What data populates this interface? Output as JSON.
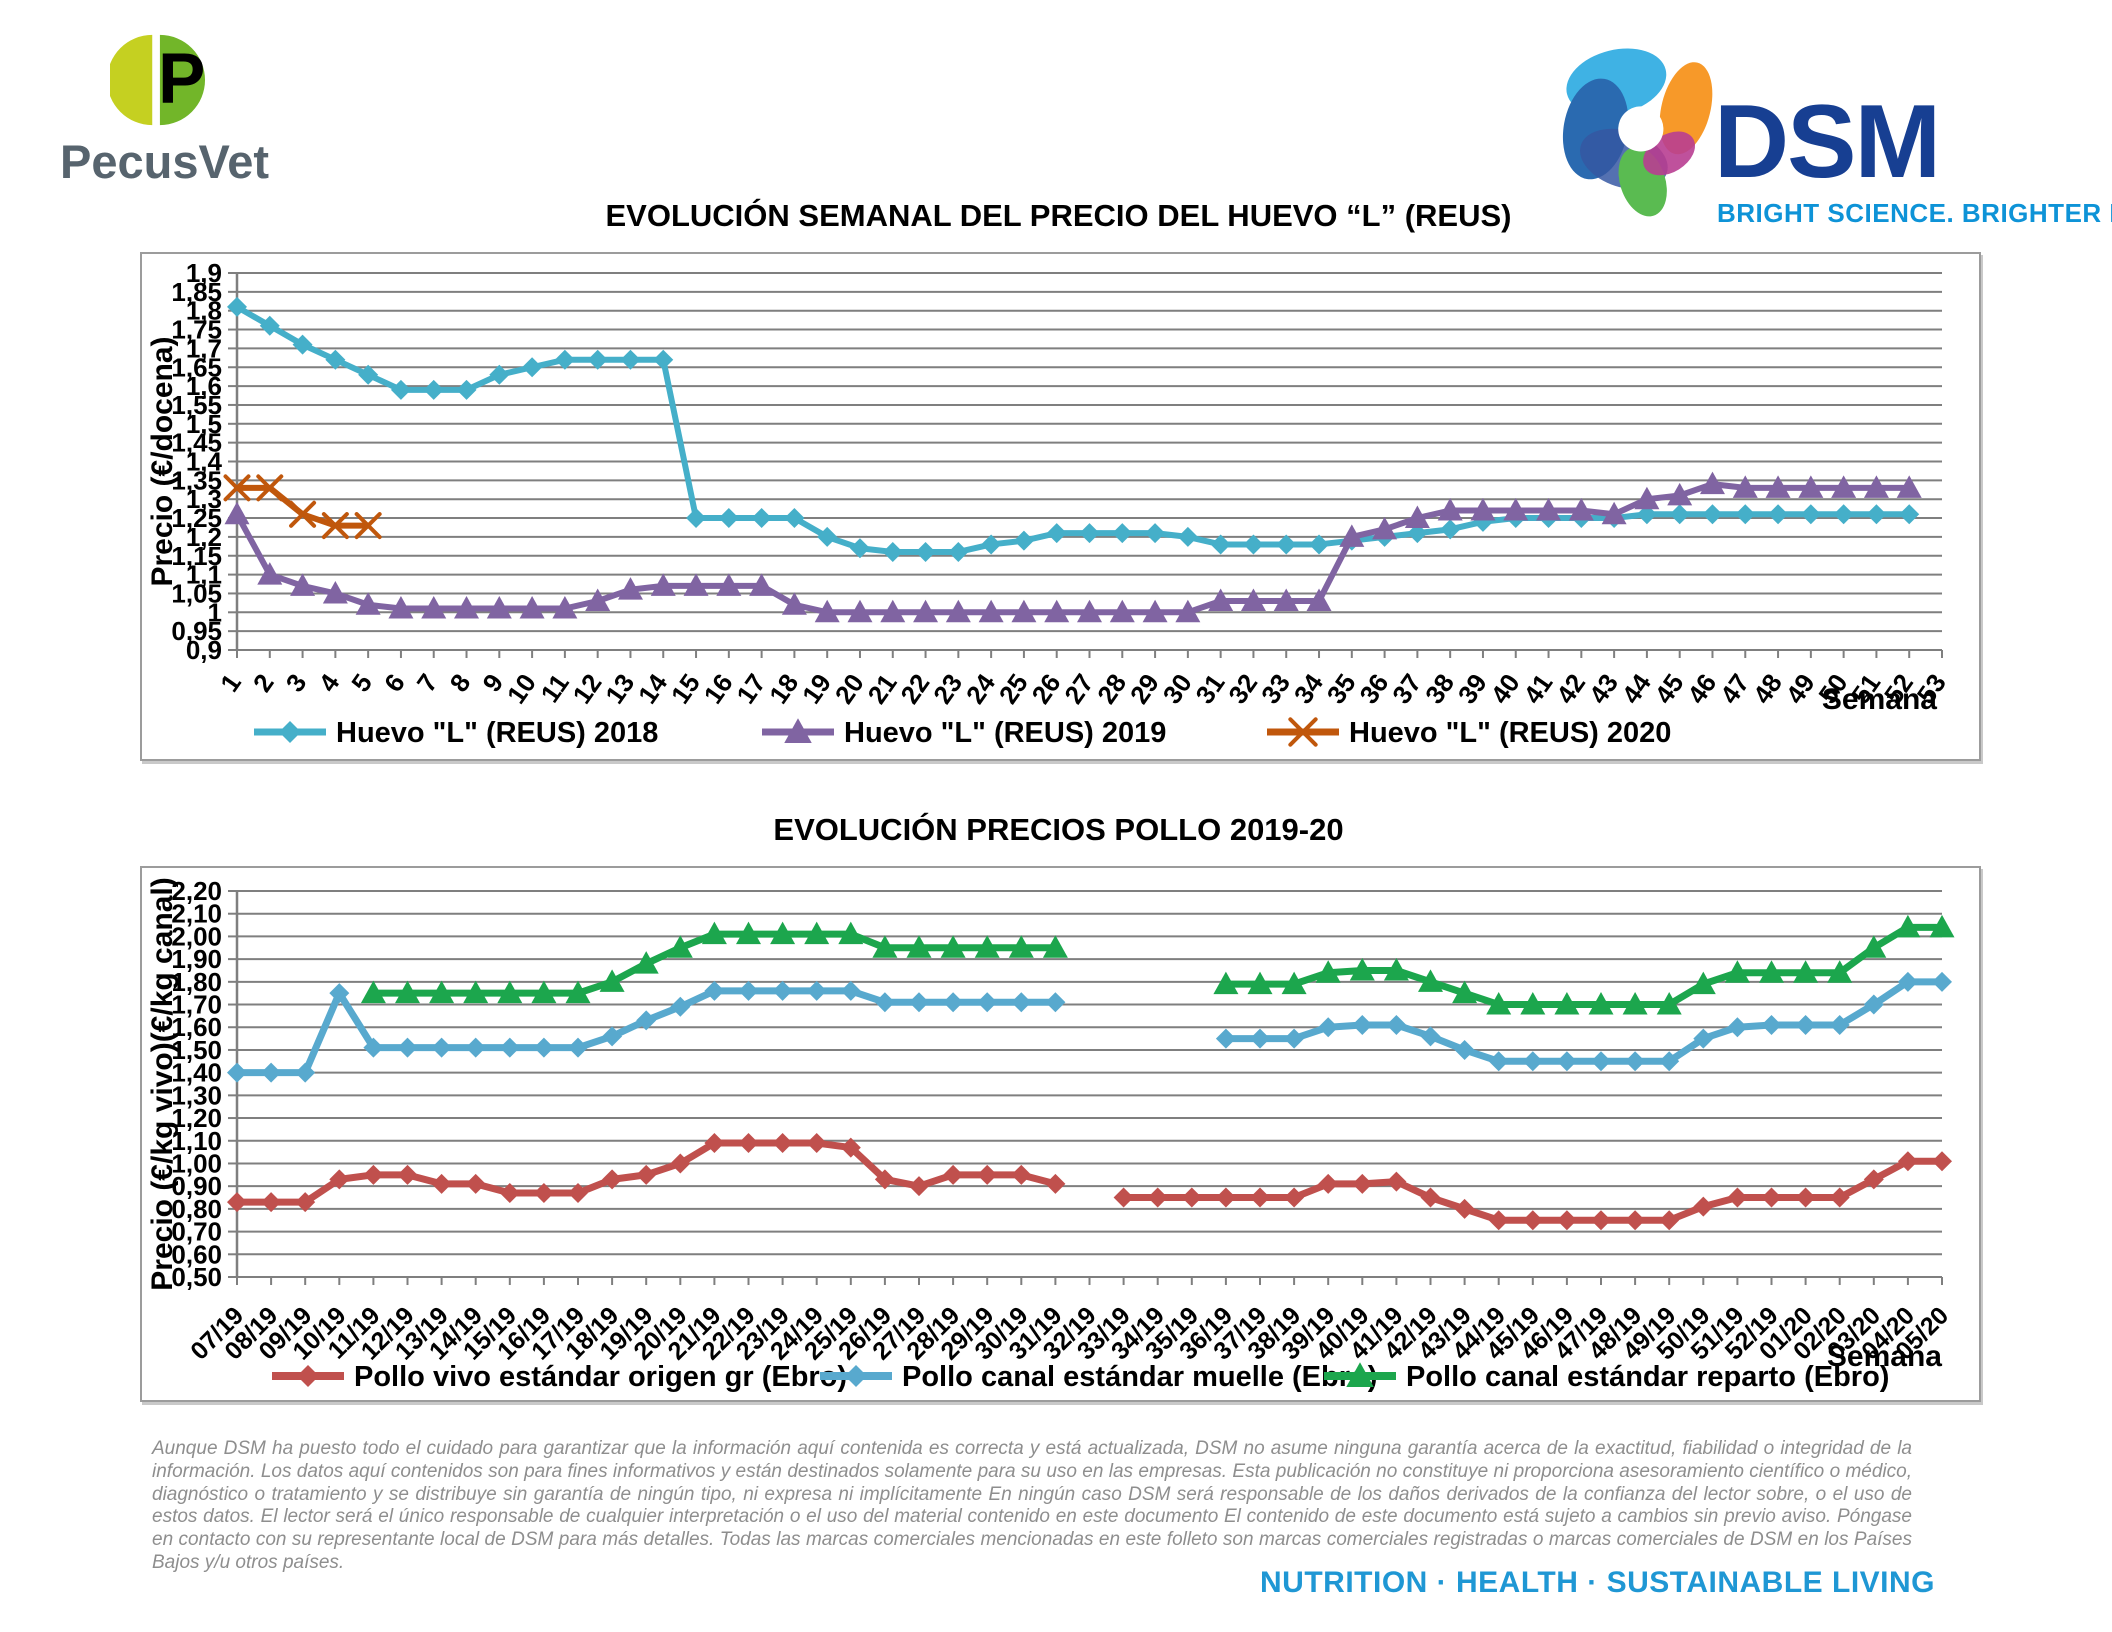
{
  "header": {
    "pecusvet": {
      "name": "PecusVet"
    },
    "dsm": {
      "name": "DSM",
      "tagline": "BRIGHT SCIENCE. BRIGHTER LIVING."
    }
  },
  "footer": {
    "disclaimer": "Aunque DSM ha puesto todo el cuidado para garantizar que la información aquí contenida es correcta y está actualizada, DSM no asume ninguna garantía acerca de la exactitud, fiabilidad o integridad de la información. Los datos aquí contenidos son para fines informativos y están destinados solamente para su uso en las empresas. Esta publicación no constituye ni proporciona asesoramiento científico o médico, diagnóstico o tratamiento y se distribuye sin garantía de ningún tipo, ni expresa ni implícitamente En ningún caso DSM será responsable de los daños derivados de la confianza del lector sobre, o el uso de estos datos. El lector será el único responsable de cualquier interpretación o el uso del material contenido en este documento El contenido de este documento está sujeto a cambios sin previo aviso. Póngase en contacto con su representante local de DSM para más detalles. Todas las marcas comerciales mencionadas en este folleto son marcas comerciales registradas o marcas comerciales de DSM en los Países Bajos y/u otros países.",
    "tagline": "NUTRITION  ·  HEALTH  ·  SUSTAINABLE LIVING"
  },
  "chart_data": [
    {
      "id": "huevo",
      "type": "line",
      "title": "EVOLUCIÓN SEMANAL DEL PRECIO DEL HUEVO “L” (REUS)",
      "ylabel": "Precio (€/docena)",
      "xlabel": "Semana",
      "ylim": [
        0.9,
        1.9
      ],
      "grid": true,
      "legend_position": "bottom",
      "yticks": [
        "1,9",
        "1,85",
        "1,8",
        "1,75",
        "1,7",
        "1,65",
        "1,6",
        "1,55",
        "1,5",
        "1,45",
        "1,4",
        "1,35",
        "1,3",
        "1,25",
        "1,2",
        "1,15",
        "1,1",
        "1,05",
        "1",
        "0,95",
        "0,9"
      ],
      "categories": [
        "1",
        "2",
        "3",
        "4",
        "5",
        "6",
        "7",
        "8",
        "9",
        "10",
        "11",
        "12",
        "13",
        "14",
        "15",
        "16",
        "17",
        "18",
        "19",
        "20",
        "21",
        "22",
        "23",
        "24",
        "25",
        "26",
        "27",
        "28",
        "29",
        "30",
        "31",
        "32",
        "33",
        "34",
        "35",
        "36",
        "37",
        "38",
        "39",
        "40",
        "41",
        "42",
        "43",
        "44",
        "45",
        "46",
        "47",
        "48",
        "49",
        "50",
        "51",
        "52",
        "53"
      ],
      "series": [
        {
          "name": "Huevo \"L\" (REUS) 2018",
          "color": "#45AFC9",
          "marker": "diamond",
          "values": [
            1.81,
            1.76,
            1.71,
            1.67,
            1.63,
            1.59,
            1.59,
            1.59,
            1.63,
            1.65,
            1.67,
            1.67,
            1.67,
            1.67,
            1.25,
            1.25,
            1.25,
            1.25,
            1.2,
            1.17,
            1.16,
            1.16,
            1.16,
            1.18,
            1.19,
            1.21,
            1.21,
            1.21,
            1.21,
            1.2,
            1.18,
            1.18,
            1.18,
            1.18,
            1.19,
            1.2,
            1.21,
            1.22,
            1.24,
            1.25,
            1.25,
            1.25,
            1.25,
            1.26,
            1.26,
            1.26,
            1.26,
            1.26,
            1.26,
            1.26,
            1.26,
            1.26
          ]
        },
        {
          "name": "Huevo \"L\" (REUS) 2019",
          "color": "#8064A2",
          "marker": "triangle",
          "values": [
            1.26,
            1.1,
            1.07,
            1.05,
            1.02,
            1.01,
            1.01,
            1.01,
            1.01,
            1.01,
            1.01,
            1.03,
            1.06,
            1.07,
            1.07,
            1.07,
            1.07,
            1.02,
            1.0,
            1.0,
            1.0,
            1.0,
            1.0,
            1.0,
            1.0,
            1.0,
            1.0,
            1.0,
            1.0,
            1.0,
            1.03,
            1.03,
            1.03,
            1.03,
            1.2,
            1.22,
            1.25,
            1.27,
            1.27,
            1.27,
            1.27,
            1.27,
            1.26,
            1.3,
            1.31,
            1.34,
            1.33,
            1.33,
            1.33,
            1.33,
            1.33,
            1.33
          ]
        },
        {
          "name": "Huevo \"L\" (REUS) 2020",
          "color": "#C0570C",
          "marker": "x",
          "values": [
            1.33,
            1.33,
            1.26,
            1.23,
            1.23
          ]
        }
      ]
    },
    {
      "id": "pollo",
      "type": "line",
      "title": "EVOLUCIÓN PRECIOS POLLO 2019-20",
      "ylabel": "Precio (€/kg vivo)(€/kg canal)",
      "xlabel": "Semana",
      "ylim": [
        0.5,
        2.2
      ],
      "grid": true,
      "legend_position": "bottom",
      "yticks": [
        "2,20",
        "2,10",
        "2,00",
        "1,90",
        "1,80",
        "1,70",
        "1,60",
        "1,50",
        "1,40",
        "1,30",
        "1,20",
        "1,10",
        "1,00",
        "0,90",
        "0,80",
        "0,70",
        "0,60",
        "0,50"
      ],
      "categories": [
        "07/19",
        "08/19",
        "09/19",
        "10/19",
        "11/19",
        "12/19",
        "13/19",
        "14/19",
        "15/19",
        "16/19",
        "17/19",
        "18/19",
        "19/19",
        "20/19",
        "21/19",
        "22/19",
        "23/19",
        "24/19",
        "25/19",
        "26/19",
        "27/19",
        "28/19",
        "29/19",
        "30/19",
        "31/19",
        "32/19",
        "33/19",
        "34/19",
        "35/19",
        "36/19",
        "37/19",
        "38/19",
        "39/19",
        "40/19",
        "41/19",
        "42/19",
        "43/19",
        "44/19",
        "45/19",
        "46/19",
        "47/19",
        "48/19",
        "49/19",
        "50/19",
        "51/19",
        "52/19",
        "01/20",
        "02/20",
        "03/20",
        "04/20",
        "05/20"
      ],
      "series": [
        {
          "name": "Pollo vivo estándar origen gr (Ebro)",
          "color": "#C0504D",
          "marker": "diamond",
          "values": [
            0.83,
            0.83,
            0.83,
            0.93,
            0.95,
            0.95,
            0.91,
            0.91,
            0.87,
            0.87,
            0.87,
            0.93,
            0.95,
            1.0,
            1.09,
            1.09,
            1.09,
            1.09,
            1.07,
            0.93,
            0.9,
            0.95,
            0.95,
            0.95,
            0.91,
            null,
            0.85,
            0.85,
            0.85,
            0.85,
            0.85,
            0.85,
            0.91,
            0.91,
            0.92,
            0.85,
            0.8,
            0.75,
            0.75,
            0.75,
            0.75,
            0.75,
            0.75,
            0.81,
            0.85,
            0.85,
            0.85,
            0.85,
            0.93,
            1.01,
            1.01
          ]
        },
        {
          "name": "Pollo canal estándar muelle (Ebro)",
          "color": "#58A9CE",
          "marker": "diamond",
          "values": [
            1.4,
            1.4,
            1.4,
            1.75,
            1.51,
            1.51,
            1.51,
            1.51,
            1.51,
            1.51,
            1.51,
            1.56,
            1.63,
            1.69,
            1.76,
            1.76,
            1.76,
            1.76,
            1.76,
            1.71,
            1.71,
            1.71,
            1.71,
            1.71,
            1.71,
            null,
            null,
            null,
            null,
            1.55,
            1.55,
            1.55,
            1.6,
            1.61,
            1.61,
            1.56,
            1.5,
            1.45,
            1.45,
            1.45,
            1.45,
            1.45,
            1.45,
            1.55,
            1.6,
            1.61,
            1.61,
            1.61,
            1.7,
            1.8,
            1.8
          ]
        },
        {
          "name": "Pollo canal estándar reparto (Ebro)",
          "color": "#1CA64D",
          "marker": "triangle",
          "values": [
            null,
            null,
            null,
            null,
            1.75,
            1.75,
            1.75,
            1.75,
            1.75,
            1.75,
            1.75,
            1.8,
            1.88,
            1.95,
            2.01,
            2.01,
            2.01,
            2.01,
            2.01,
            1.95,
            1.95,
            1.95,
            1.95,
            1.95,
            1.95,
            null,
            null,
            null,
            null,
            1.79,
            1.79,
            1.79,
            1.84,
            1.85,
            1.85,
            1.8,
            1.75,
            1.7,
            1.7,
            1.7,
            1.7,
            1.7,
            1.7,
            1.79,
            1.84,
            1.84,
            1.84,
            1.84,
            1.95,
            2.04,
            2.04
          ]
        }
      ]
    }
  ]
}
